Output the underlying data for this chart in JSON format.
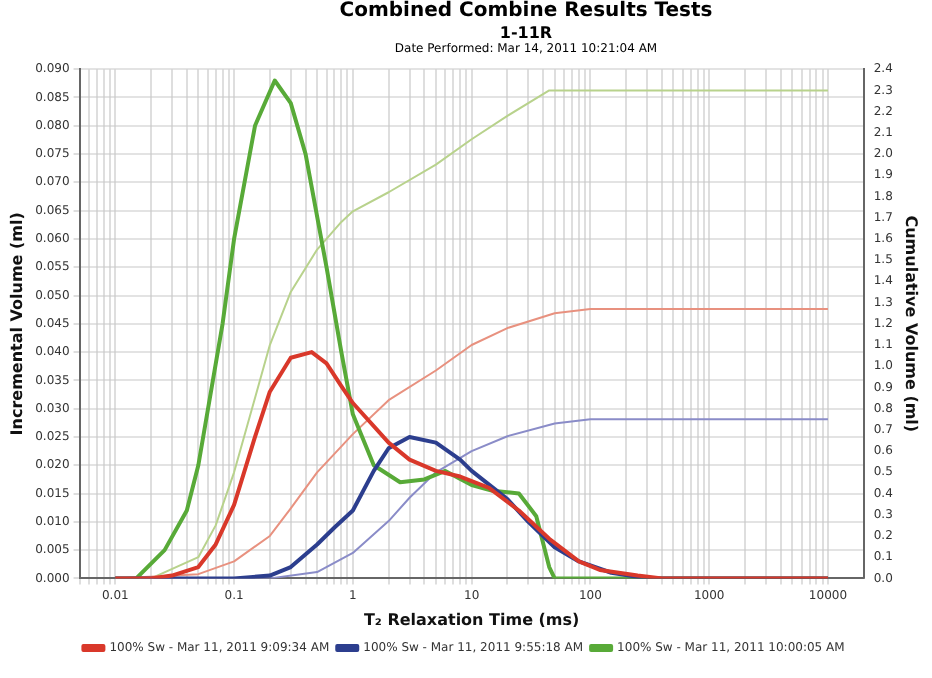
{
  "chart_data": {
    "type": "line",
    "title": "Combined Combine Results Tests",
    "subtitle": "1-11R",
    "annotations": [
      "Date Performed: Mar 14, 2011 10:21:04 AM"
    ],
    "xlabel": "T₂ Relaxation Time (ms)",
    "ylabel": "Incremental Volume (ml)",
    "y2label": "Cumulative Volume (ml)",
    "log": "x",
    "grid": true,
    "legend": "bottom",
    "marker": "none",
    "line_style": "solid",
    "xlim": [
      0.005,
      20000
    ],
    "xticks": [
      {
        "value": 0.005,
        "label": null
      },
      {
        "value": 0.006,
        "label": null
      },
      {
        "value": 0.007,
        "label": null
      },
      {
        "value": 0.008,
        "label": null
      },
      {
        "value": 0.009,
        "label": null
      },
      {
        "value": 0.01,
        "label": "0.01"
      },
      {
        "value": 0.02,
        "label": null
      },
      {
        "value": 0.03,
        "label": null
      },
      {
        "value": 0.04,
        "label": null
      },
      {
        "value": 0.05,
        "label": null
      },
      {
        "value": 0.06,
        "label": null
      },
      {
        "value": 0.07,
        "label": null
      },
      {
        "value": 0.08,
        "label": null
      },
      {
        "value": 0.09,
        "label": null
      },
      0.1,
      {
        "value": 0.2,
        "label": null
      },
      {
        "value": 0.3,
        "label": null
      },
      {
        "value": 0.4,
        "label": null
      },
      {
        "value": 0.5,
        "label": null
      },
      {
        "value": 0.6,
        "label": null
      },
      {
        "value": 0.7,
        "label": null
      },
      {
        "value": 0.8,
        "label": null
      },
      {
        "value": 0.9,
        "label": null
      },
      1,
      {
        "value": 2,
        "label": null
      },
      {
        "value": 3,
        "label": null
      },
      {
        "value": 4,
        "label": null
      },
      {
        "value": 5,
        "label": null
      },
      {
        "value": 6,
        "label": null
      },
      {
        "value": 7,
        "label": null
      },
      {
        "value": 8,
        "label": null
      },
      {
        "value": 9,
        "label": null
      },
      10,
      {
        "value": 20,
        "label": null
      },
      {
        "value": 30,
        "label": null
      },
      {
        "value": 40,
        "label": null
      },
      {
        "value": 50,
        "label": null
      },
      {
        "value": 60,
        "label": null
      },
      {
        "value": 70,
        "label": null
      },
      {
        "value": 80,
        "label": null
      },
      {
        "value": 90,
        "label": null
      },
      100,
      {
        "value": 200,
        "label": null
      },
      {
        "value": 300,
        "label": null
      },
      {
        "value": 400,
        "label": null
      },
      {
        "value": 500,
        "label": null
      },
      {
        "value": 600,
        "label": null
      },
      {
        "value": 700,
        "label": null
      },
      {
        "value": 800,
        "label": null
      },
      {
        "value": 900,
        "label": null
      },
      1000,
      {
        "value": 2000,
        "label": null
      },
      {
        "value": 3000,
        "label": null
      },
      {
        "value": 4000,
        "label": null
      },
      {
        "value": 5000,
        "label": null
      },
      {
        "value": 6000,
        "label": null
      },
      {
        "value": 7000,
        "label": null
      },
      {
        "value": 8000,
        "label": null
      },
      {
        "value": 9000,
        "label": null
      },
      10000
    ],
    "ylim": [
      0,
      0.09
    ],
    "yticks": [
      {
        "value": 0,
        "label": "0.000"
      },
      {
        "value": 0.005,
        "label": "0.005"
      },
      {
        "value": 0.01,
        "label": "0.010"
      },
      {
        "value": 0.015,
        "label": "0.015"
      },
      {
        "value": 0.02,
        "label": "0.020"
      },
      {
        "value": 0.025,
        "label": "0.025"
      },
      {
        "value": 0.03,
        "label": "0.030"
      },
      {
        "value": 0.035,
        "label": "0.035"
      },
      {
        "value": 0.04,
        "label": "0.040"
      },
      {
        "value": 0.045,
        "label": "0.045"
      },
      {
        "value": 0.05,
        "label": "0.050"
      },
      {
        "value": 0.055,
        "label": "0.055"
      },
      {
        "value": 0.06,
        "label": "0.060"
      },
      {
        "value": 0.065,
        "label": "0.065"
      },
      {
        "value": 0.07,
        "label": "0.070"
      },
      {
        "value": 0.075,
        "label": "0.075"
      },
      {
        "value": 0.08,
        "label": "0.080"
      },
      {
        "value": 0.085,
        "label": "0.085"
      },
      {
        "value": 0.09,
        "label": "0.090"
      }
    ],
    "y2lim": [
      0,
      2.4
    ],
    "y2ticks": [
      {
        "value": 0,
        "label": "0.0"
      },
      0.1,
      0.2,
      0.3,
      0.4,
      0.5,
      0.6,
      0.7,
      0.8,
      0.9,
      {
        "value": 1,
        "label": "1.0"
      },
      1.1,
      1.2,
      1.3,
      1.4,
      1.5,
      1.6,
      1.7,
      1.8,
      1.9,
      {
        "value": 2,
        "label": "2.0"
      },
      2.1,
      2.2,
      2.3,
      2.4
    ],
    "series": [
      {
        "name": "100% Sw - Mar 11, 2011 9:09:34 AM",
        "color": "#d9382a",
        "x": [
          0.01,
          0.02,
          0.03,
          0.05,
          0.07,
          0.1,
          0.15,
          0.2,
          0.3,
          0.45,
          0.6,
          0.8,
          1,
          2,
          3,
          5,
          8,
          14,
          25,
          45,
          80,
          120,
          250,
          400,
          10000
        ],
        "values": [
          0,
          0,
          0.0005,
          0.002,
          0.006,
          0.013,
          0.025,
          0.033,
          0.039,
          0.04,
          0.038,
          0.034,
          0.031,
          0.024,
          0.021,
          0.019,
          0.018,
          0.016,
          0.012,
          0.007,
          0.003,
          0.0015,
          0.0005,
          0,
          0
        ]
      },
      {
        "name": "100% Sw - Mar 11, 2011 9:55:18 AM",
        "color": "#2c3e8e",
        "x": [
          0.01,
          0.1,
          0.2,
          0.3,
          0.5,
          0.7,
          1,
          1.5,
          2,
          3,
          5,
          8,
          10,
          20,
          30,
          50,
          80,
          150,
          300,
          10000
        ],
        "values": [
          0,
          0,
          0.0005,
          0.002,
          0.006,
          0.009,
          0.012,
          0.019,
          0.023,
          0.025,
          0.024,
          0.021,
          0.019,
          0.014,
          0.01,
          0.0055,
          0.003,
          0.001,
          0,
          0
        ]
      },
      {
        "name": "100% Sw - Mar 11, 2011 10:00:05 AM",
        "color": "#58aa38",
        "x": [
          0.01,
          0.015,
          0.026,
          0.04,
          0.05,
          0.08,
          0.1,
          0.15,
          0.22,
          0.3,
          0.4,
          0.6,
          0.8,
          1,
          1.5,
          2.5,
          4,
          6,
          10,
          15,
          25,
          35,
          45,
          50,
          10000
        ],
        "values": [
          0,
          0,
          0.005,
          0.012,
          0.02,
          0.045,
          0.06,
          0.08,
          0.088,
          0.084,
          0.075,
          0.055,
          0.04,
          0.029,
          0.02,
          0.017,
          0.0175,
          0.019,
          0.0165,
          0.0155,
          0.015,
          0.011,
          0.002,
          0,
          0
        ]
      },
      {
        "color": "#e8917f",
        "axis": "y2",
        "x": [
          0.01,
          0.05,
          0.1,
          0.2,
          0.3,
          0.5,
          1,
          2,
          5,
          10,
          20,
          50,
          100,
          10000
        ],
        "values": [
          0,
          0.02,
          0.08,
          0.2,
          0.33,
          0.5,
          0.68,
          0.84,
          0.98,
          1.1,
          1.18,
          1.25,
          1.27,
          1.27
        ]
      },
      {
        "color": "#8a8cc8",
        "axis": "y2",
        "x": [
          0.01,
          0.2,
          0.5,
          1,
          2,
          3,
          5,
          10,
          20,
          50,
          100,
          10000
        ],
        "values": [
          0,
          0,
          0.03,
          0.12,
          0.27,
          0.38,
          0.5,
          0.6,
          0.67,
          0.73,
          0.75,
          0.75
        ]
      },
      {
        "color": "#b8d28c",
        "axis": "y2",
        "x": [
          0.01,
          0.02,
          0.05,
          0.07,
          0.1,
          0.15,
          0.2,
          0.3,
          0.5,
          0.8,
          1,
          2,
          5,
          10,
          20,
          45,
          10000
        ],
        "values": [
          0,
          0,
          0.1,
          0.25,
          0.5,
          0.85,
          1.1,
          1.35,
          1.55,
          1.68,
          1.73,
          1.82,
          1.95,
          2.07,
          2.18,
          2.3,
          2.3
        ]
      }
    ]
  }
}
